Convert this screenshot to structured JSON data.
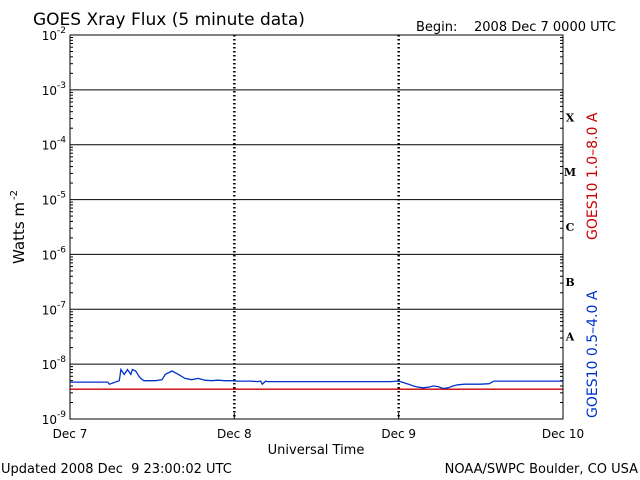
{
  "title": "GOES Xray Flux (5 minute data)",
  "begin_label": "Begin:",
  "begin_value": "2008 Dec 7 0000 UTC",
  "footer_left": "Updated 2008 Dec  9 23:00:02 UTC",
  "footer_right": "NOAA/SWPC Boulder, CO USA",
  "colors": {
    "long_channel": "#cc0000",
    "short_channel": "#0033cc"
  },
  "chart_data": {
    "type": "line",
    "title": "GOES Xray Flux (5 minute data)",
    "xlabel": "Universal Time",
    "ylabel": "Watts m",
    "ylabel_superscript": "-2",
    "yscale": "log",
    "ylim": [
      1e-09,
      0.01
    ],
    "xlim_days": [
      0,
      3
    ],
    "x_tick_labels": [
      "Dec 7",
      "Dec 8",
      "Dec 9",
      "Dec 10"
    ],
    "y_tick_labels": [
      {
        "base": "10",
        "exp": "-9"
      },
      {
        "base": "10",
        "exp": "-8"
      },
      {
        "base": "10",
        "exp": "-7"
      },
      {
        "base": "10",
        "exp": "-6"
      },
      {
        "base": "10",
        "exp": "-5"
      },
      {
        "base": "10",
        "exp": "-4"
      },
      {
        "base": "10",
        "exp": "-3"
      },
      {
        "base": "10",
        "exp": "-2"
      }
    ],
    "flare_classes": [
      {
        "label": "A",
        "log_mid": -7.5
      },
      {
        "label": "B",
        "log_mid": -6.5
      },
      {
        "label": "C",
        "log_mid": -5.5
      },
      {
        "label": "M",
        "log_mid": -4.5
      },
      {
        "label": "X",
        "log_mid": -3.5
      }
    ],
    "grid": "horizontal decade lines, dashed day dividers",
    "series": [
      {
        "name": "GOES10 1.0–8.0 A",
        "color": "#cc0000",
        "x": [
          0.0,
          0.5,
          0.8,
          1.0,
          1.5,
          2.0,
          2.5,
          3.0
        ],
        "y": [
          3.5e-09,
          3.5e-09,
          3.5e-09,
          3.5e-09,
          3.5e-09,
          3.5e-09,
          3.5e-09,
          3.5e-09
        ]
      },
      {
        "name": "GOES10 0.5–4.0 A",
        "color": "#0033cc",
        "x": [
          0.0,
          0.23,
          0.24,
          0.3,
          0.31,
          0.33,
          0.35,
          0.37,
          0.38,
          0.4,
          0.42,
          0.43,
          0.45,
          0.48,
          0.52,
          0.56,
          0.58,
          0.62,
          0.66,
          0.7,
          0.74,
          0.78,
          0.82,
          0.86,
          0.9,
          0.94,
          0.98,
          1.02,
          1.06,
          1.1,
          1.14,
          1.16,
          1.17,
          1.19,
          1.2,
          1.26,
          1.35,
          1.45,
          1.55,
          1.65,
          1.75,
          1.85,
          1.95,
          2.0,
          2.03,
          2.06,
          2.09,
          2.12,
          2.15,
          2.18,
          2.21,
          2.24,
          2.27,
          2.3,
          2.33,
          2.36,
          2.4,
          2.45,
          2.5,
          2.55,
          2.58,
          2.62,
          2.7,
          2.8,
          2.9,
          3.0
        ],
        "y": [
          4.7e-09,
          4.7e-09,
          4.3e-09,
          5e-09,
          8e-09,
          6.5e-09,
          8e-09,
          6.5e-09,
          8e-09,
          7.5e-09,
          6e-09,
          5.5e-09,
          5e-09,
          5e-09,
          5e-09,
          5.2e-09,
          6.5e-09,
          7.5e-09,
          6.5e-09,
          5.5e-09,
          5.2e-09,
          5.5e-09,
          5.1e-09,
          5e-09,
          5.1e-09,
          5e-09,
          5e-09,
          4.9e-09,
          4.9e-09,
          4.9e-09,
          4.8e-09,
          4.9e-09,
          4.3e-09,
          4.9e-09,
          4.8e-09,
          4.8e-09,
          4.8e-09,
          4.8e-09,
          4.8e-09,
          4.8e-09,
          4.8e-09,
          4.8e-09,
          4.8e-09,
          4.9e-09,
          4.6e-09,
          4.3e-09,
          4e-09,
          3.8e-09,
          3.7e-09,
          3.8e-09,
          4e-09,
          3.9e-09,
          3.6e-09,
          3.7e-09,
          4e-09,
          4.2e-09,
          4.3e-09,
          4.3e-09,
          4.3e-09,
          4.4e-09,
          4.9e-09,
          4.9e-09,
          4.9e-09,
          4.9e-09,
          4.9e-09,
          4.9e-09
        ]
      }
    ]
  }
}
